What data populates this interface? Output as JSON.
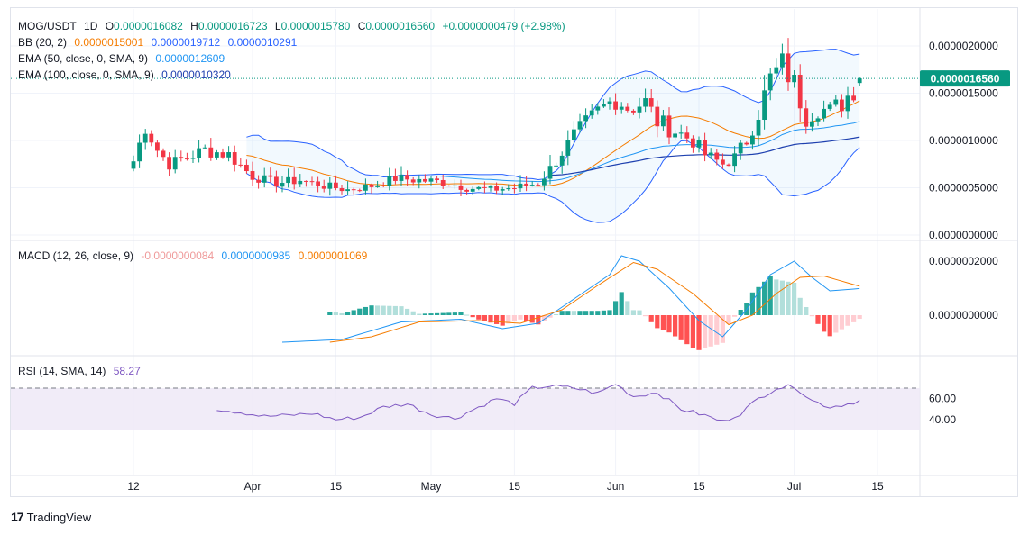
{
  "symbol": {
    "pair": "MOG/USDT",
    "interval": "1D"
  },
  "ohlc": {
    "o_label": "O",
    "o": "0.0000016082",
    "h_label": "H",
    "h": "0.0000016723",
    "l_label": "L",
    "l": "0.0000015780",
    "c_label": "C",
    "c": "0.0000016560",
    "change": "+0.0000000479 (+2.98%)"
  },
  "indicators": {
    "bb": {
      "label": "BB (20, 2)",
      "basis": "0.0000015001",
      "upper": "0.0000019712",
      "lower": "0.0000010291"
    },
    "ema50": {
      "label": "EMA (50, close, 0, SMA, 9)",
      "value": "0.0000012609"
    },
    "ema100": {
      "label": "EMA (100, close, 0, SMA, 9)",
      "value": "0.0000010320"
    },
    "macd": {
      "label": "MACD (12, 26, close, 9)",
      "hist": "-0.0000000084",
      "macd": "0.0000000985",
      "signal": "0.0000001069"
    },
    "rsi": {
      "label": "RSI (14, SMA, 14)",
      "value": "58.27"
    }
  },
  "axes": {
    "price_ticks": [
      "0.0000020000",
      "0.0000015000",
      "0.0000010000",
      "0.0000005000",
      "0.0000000000"
    ],
    "price_tick_values": [
      2.0,
      1.5,
      1.0,
      0.5,
      0.0
    ],
    "last_price": "0.0000016560",
    "last_price_value": 1.656,
    "macd_ticks": [
      "0.0000002000",
      "0.0000000000"
    ],
    "macd_tick_values": [
      2.0,
      0.0
    ],
    "rsi_ticks": [
      "60.00",
      "40.00"
    ],
    "rsi_tick_values": [
      60,
      40
    ],
    "rsi_bands": [
      70,
      30
    ],
    "x_ticks": [
      {
        "label": "12",
        "day": 0
      },
      {
        "label": "Apr",
        "day": 20
      },
      {
        "label": "15",
        "day": 34
      },
      {
        "label": "May",
        "day": 50
      },
      {
        "label": "15",
        "day": 64
      },
      {
        "label": "Jun",
        "day": 81
      },
      {
        "label": "15",
        "day": 95
      },
      {
        "label": "Jul",
        "day": 111
      },
      {
        "label": "15",
        "day": 125
      }
    ]
  },
  "colors": {
    "up": "#089981",
    "down": "#f23645",
    "bb_basis": "#f57c00",
    "bb_band": "#2962ff",
    "ema50": "#2196f3",
    "ema100": "#1e40af",
    "macd_line": "#2196f3",
    "signal_line": "#f57c00",
    "hist_up": "#26a69a",
    "hist_up_weak": "#b2dfdb",
    "hist_down": "#ff5252",
    "hist_down_weak": "#ffcdd2",
    "rsi_line": "#7e57c2",
    "rsi_bg": "#ede7f6"
  },
  "brand": {
    "name": "TradingView",
    "logo": "17"
  },
  "chart_data": {
    "type": "candlestick",
    "note_units": "price values in 1e-6 USDT",
    "candles": []
  }
}
